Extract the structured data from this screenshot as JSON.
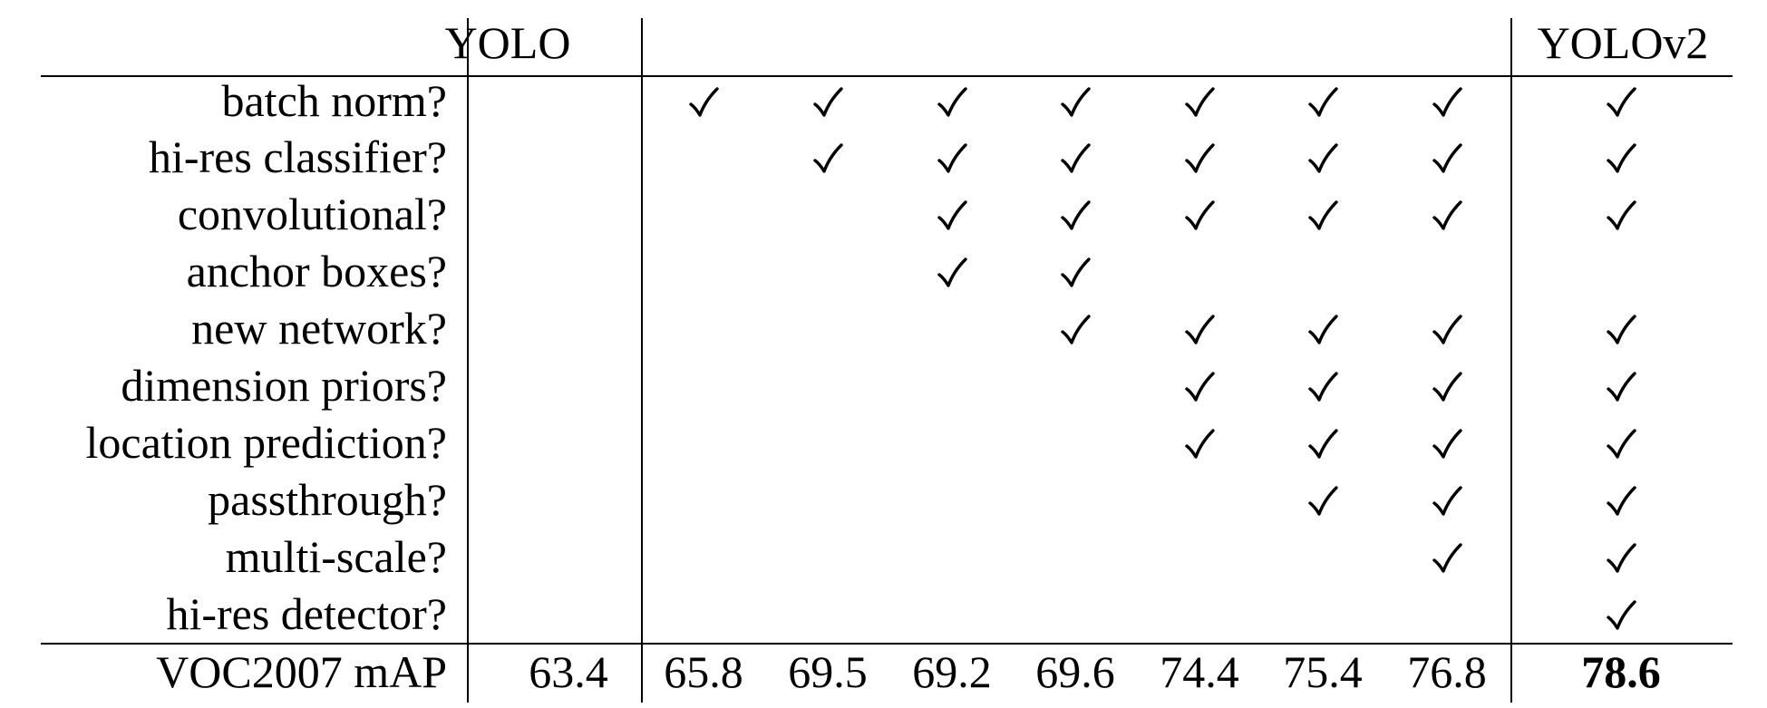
{
  "columns": {
    "yolo": "YOLO",
    "yolov2": "YOLOv2"
  },
  "rows": [
    {
      "label": "batch norm?",
      "checks": [
        false,
        true,
        true,
        true,
        true,
        true,
        true,
        true,
        true
      ]
    },
    {
      "label": "hi-res classifier?",
      "checks": [
        false,
        false,
        true,
        true,
        true,
        true,
        true,
        true,
        true
      ]
    },
    {
      "label": "convolutional?",
      "checks": [
        false,
        false,
        false,
        true,
        true,
        true,
        true,
        true,
        true
      ]
    },
    {
      "label": "anchor boxes?",
      "checks": [
        false,
        false,
        false,
        true,
        true,
        false,
        false,
        false,
        false
      ]
    },
    {
      "label": "new network?",
      "checks": [
        false,
        false,
        false,
        false,
        true,
        true,
        true,
        true,
        true
      ]
    },
    {
      "label": "dimension priors?",
      "checks": [
        false,
        false,
        false,
        false,
        false,
        true,
        true,
        true,
        true
      ]
    },
    {
      "label": "location prediction?",
      "checks": [
        false,
        false,
        false,
        false,
        false,
        true,
        true,
        true,
        true
      ]
    },
    {
      "label": "passthrough?",
      "checks": [
        false,
        false,
        false,
        false,
        false,
        false,
        true,
        true,
        true
      ]
    },
    {
      "label": "multi-scale?",
      "checks": [
        false,
        false,
        false,
        false,
        false,
        false,
        false,
        true,
        true
      ]
    },
    {
      "label": "hi-res detector?",
      "checks": [
        false,
        false,
        false,
        false,
        false,
        false,
        false,
        false,
        true
      ]
    }
  ],
  "metric": {
    "label": "VOC2007 mAP",
    "values": [
      "63.4",
      "65.8",
      "69.5",
      "69.2",
      "69.6",
      "74.4",
      "75.4",
      "76.8",
      "78.6"
    ],
    "bold_index": 8
  },
  "check_glyph_name": "checkmark-icon"
}
